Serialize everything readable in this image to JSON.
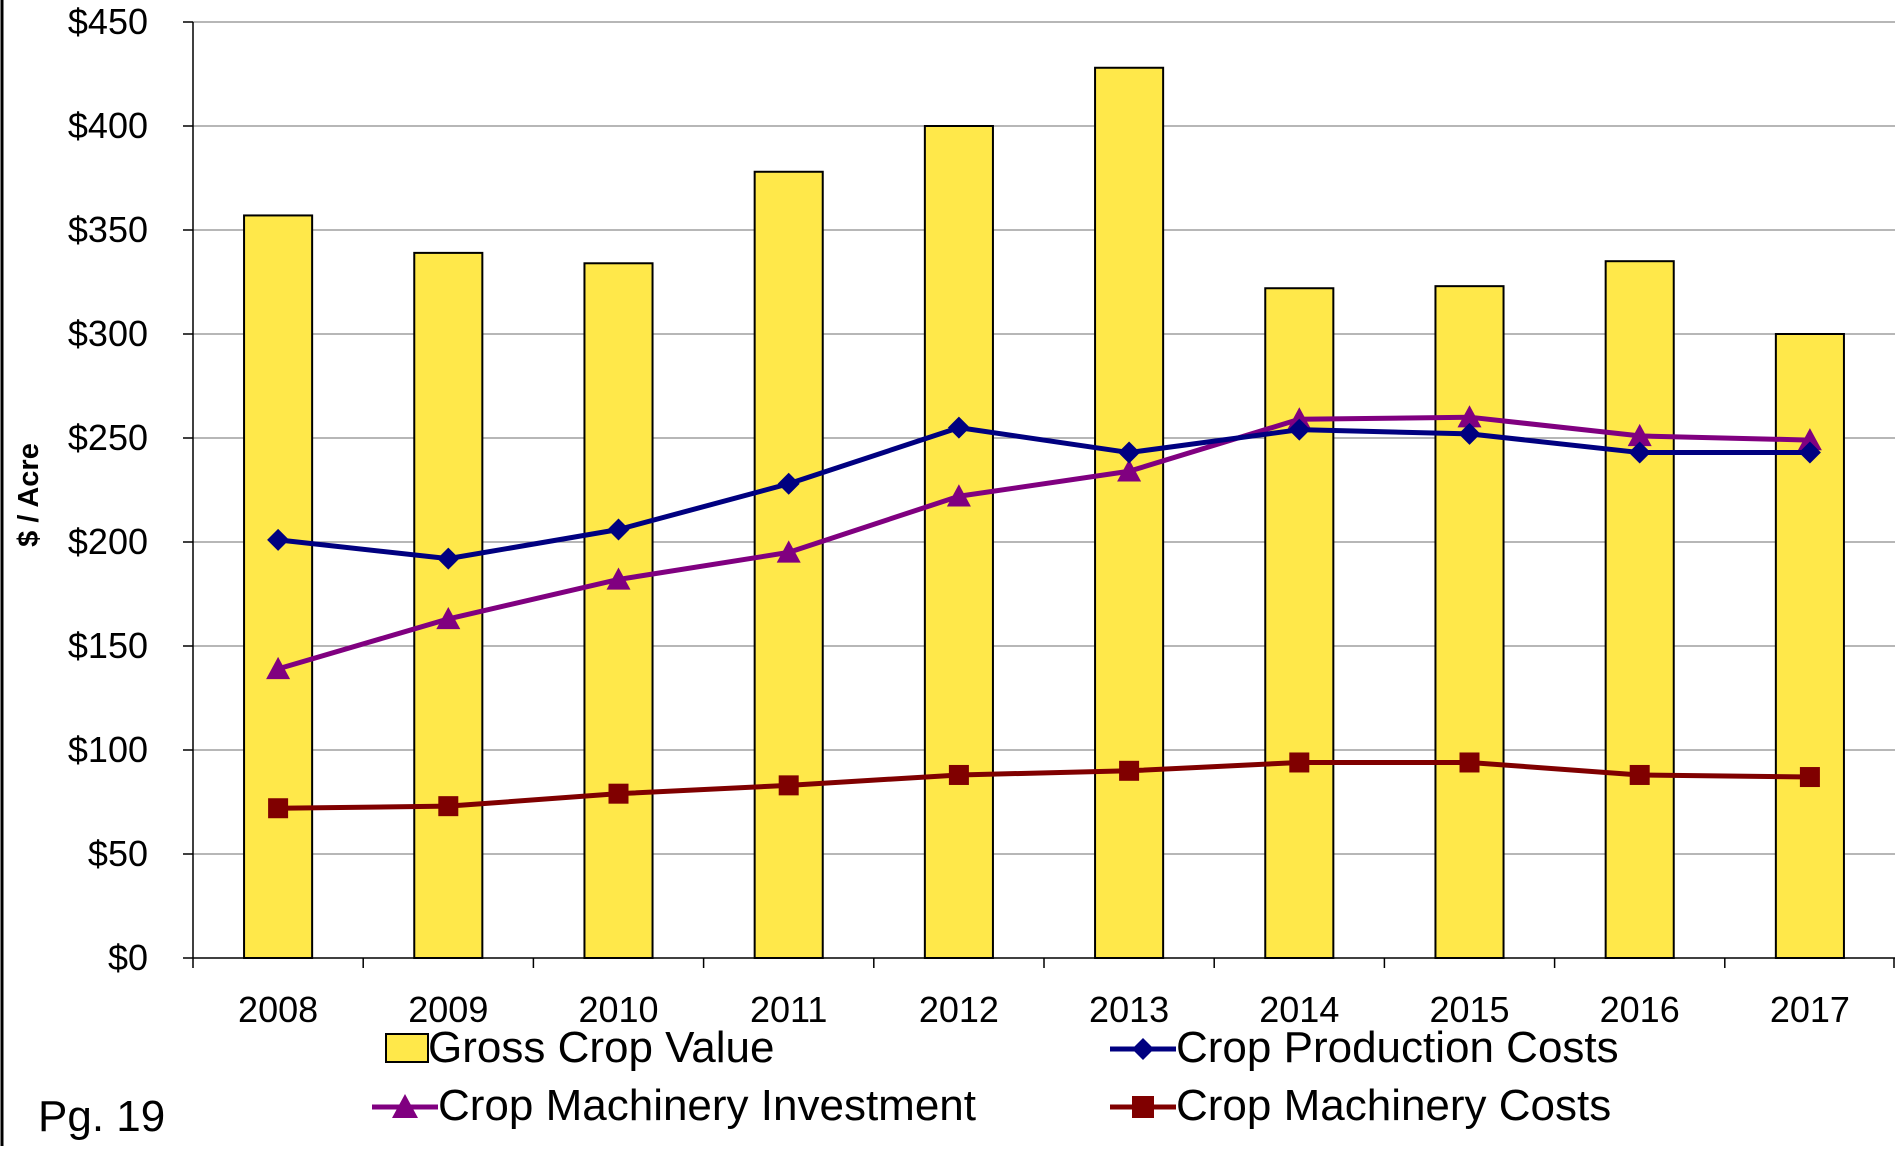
{
  "chart_data": {
    "type": "bar",
    "categories": [
      "2008",
      "2009",
      "2010",
      "2011",
      "2012",
      "2013",
      "2014",
      "2015",
      "2016",
      "2017"
    ],
    "ylabel": "$ / Acre",
    "ylim": [
      0,
      450
    ],
    "yticks": [
      0,
      50,
      100,
      150,
      200,
      250,
      300,
      350,
      400,
      450
    ],
    "ytick_labels": [
      "$0",
      "$50",
      "$100",
      "$150",
      "$200",
      "$250",
      "$300",
      "$350",
      "$400",
      "$450"
    ],
    "grid": true,
    "legend_position": "bottom",
    "series": [
      {
        "name": "Gross Crop Value",
        "kind": "bar",
        "marker": "square",
        "color": "#FFE84A",
        "values": [
          357,
          339,
          334,
          378,
          400,
          428,
          322,
          323,
          335,
          300
        ]
      },
      {
        "name": "Crop Production Costs",
        "kind": "line",
        "marker": "diamond",
        "color": "#000080",
        "values": [
          201,
          192,
          206,
          228,
          255,
          243,
          254,
          252,
          243,
          243
        ]
      },
      {
        "name": "Crop Machinery Investment",
        "kind": "line",
        "marker": "triangle",
        "color": "#800080",
        "values": [
          139,
          163,
          182,
          195,
          222,
          234,
          259,
          260,
          251,
          249
        ]
      },
      {
        "name": "Crop Machinery Costs",
        "kind": "line",
        "marker": "square",
        "color": "#800000",
        "values": [
          72,
          73,
          79,
          83,
          88,
          90,
          94,
          94,
          88,
          87
        ]
      }
    ]
  },
  "footer": {
    "page_label": "Pg. 19"
  }
}
